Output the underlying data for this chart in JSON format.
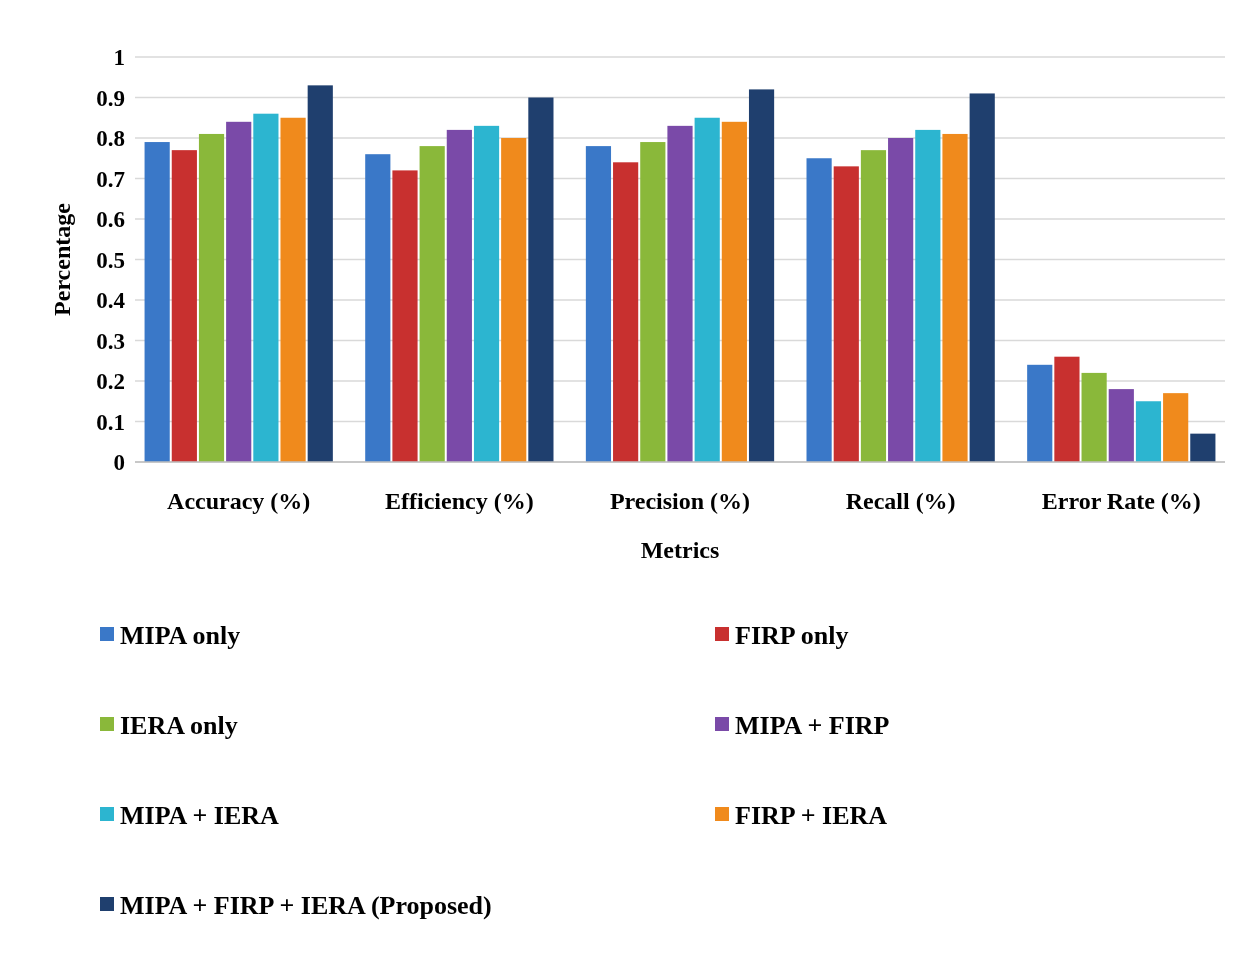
{
  "chart_data": {
    "type": "bar",
    "xlabel": "Metrics",
    "ylabel": "Percentage",
    "categories": [
      "Accuracy (%)",
      "Efficiency (%)",
      "Precision (%)",
      "Recall (%)",
      "Error Rate (%)"
    ],
    "series": [
      {
        "name": "MIPA only",
        "color": "#3a78c8",
        "values": [
          0.79,
          0.76,
          0.78,
          0.75,
          0.24
        ]
      },
      {
        "name": "FIRP only",
        "color": "#c8302f",
        "values": [
          0.77,
          0.72,
          0.74,
          0.73,
          0.26
        ]
      },
      {
        "name": "IERA only",
        "color": "#8ab83a",
        "values": [
          0.81,
          0.78,
          0.79,
          0.77,
          0.22
        ]
      },
      {
        "name": "MIPA + FIRP",
        "color": "#7a4aa8",
        "values": [
          0.84,
          0.82,
          0.83,
          0.8,
          0.18
        ]
      },
      {
        "name": "MIPA + IERA",
        "color": "#2cb5d0",
        "values": [
          0.86,
          0.83,
          0.85,
          0.82,
          0.15
        ]
      },
      {
        "name": "FIRP + IERA",
        "color": "#f08a1c",
        "values": [
          0.85,
          0.8,
          0.84,
          0.81,
          0.17
        ]
      },
      {
        "name": "MIPA + FIRP + IERA (Proposed)",
        "color": "#1f3f6e",
        "values": [
          0.93,
          0.9,
          0.92,
          0.91,
          0.07
        ]
      }
    ],
    "ylim": [
      0,
      1
    ],
    "yticks": [
      0,
      0.1,
      0.2,
      0.3,
      0.4,
      0.5,
      0.6,
      0.7,
      0.8,
      0.9,
      1
    ],
    "grid": "y",
    "legend": "bottom"
  }
}
